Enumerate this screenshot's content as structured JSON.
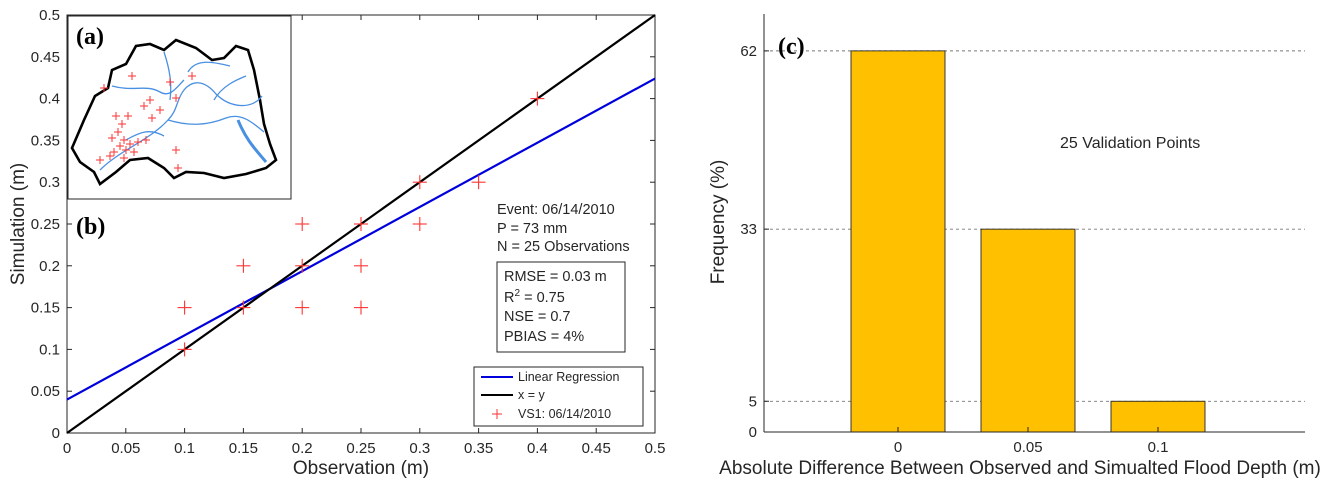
{
  "chart_data": [
    {
      "type": "scatter",
      "panel_label": "(b)",
      "xlabel": "Observation (m)",
      "ylabel": "Simulation (m)",
      "xlim": [
        0,
        0.5
      ],
      "ylim": [
        0,
        0.5
      ],
      "xticks": [
        "0",
        "0.05",
        "0.1",
        "0.15",
        "0.2",
        "0.25",
        "0.3",
        "0.35",
        "0.4",
        "0.45",
        "0.5"
      ],
      "yticks": [
        "0",
        "0.05",
        "0.1",
        "0.15",
        "0.2",
        "0.25",
        "0.3",
        "0.35",
        "0.4",
        "0.45",
        "0.5"
      ],
      "grid": false,
      "legend_position": "bottom-right",
      "series": [
        {
          "name": "VS1: 06/14/2010",
          "kind": "points",
          "marker": "+",
          "color": "#ff3333",
          "points": [
            [
              0.1,
              0.1
            ],
            [
              0.1,
              0.15
            ],
            [
              0.15,
              0.15
            ],
            [
              0.15,
              0.2
            ],
            [
              0.2,
              0.15
            ],
            [
              0.2,
              0.2
            ],
            [
              0.2,
              0.25
            ],
            [
              0.25,
              0.15
            ],
            [
              0.25,
              0.2
            ],
            [
              0.25,
              0.25
            ],
            [
              0.3,
              0.25
            ],
            [
              0.3,
              0.3
            ],
            [
              0.35,
              0.3
            ],
            [
              0.4,
              0.4
            ]
          ]
        },
        {
          "name": "Linear Regression",
          "kind": "line",
          "color": "#0000dd",
          "points": [
            [
              0,
              0.04
            ],
            [
              0.5,
              0.424
            ]
          ]
        },
        {
          "name": "x = y",
          "kind": "line",
          "color": "#000000",
          "points": [
            [
              0,
              0
            ],
            [
              0.5,
              0.5
            ]
          ]
        }
      ],
      "annotations": {
        "event_lines": [
          "Event: 06/14/2010",
          "P = 73 mm",
          "N = 25 Observations"
        ],
        "stats": [
          "RMSE = 0.03 m",
          "R",
          "2",
          " = 0.75",
          "NSE = 0.7",
          "PBIAS = 4%"
        ]
      },
      "inset": {
        "panel_label": "(a)",
        "colors": {
          "boundary": "#000000",
          "river": "#4a90e2",
          "marker": "#ff3333"
        }
      }
    },
    {
      "type": "bar",
      "panel_label": "(c)",
      "xlabel": "Absolute Difference Between Observed and Simualted Flood Depth (m)",
      "ylabel": "Frequency (%)",
      "categories": [
        "0",
        "0.05",
        "0.1"
      ],
      "values": [
        62,
        33,
        5
      ],
      "ylim": [
        0,
        68
      ],
      "yticks": [
        "0",
        "5",
        "33",
        "62"
      ],
      "bar_color": "#ffc000",
      "reference_lines": [
        5,
        33,
        62
      ],
      "annotation": "25 Validation Points"
    }
  ]
}
